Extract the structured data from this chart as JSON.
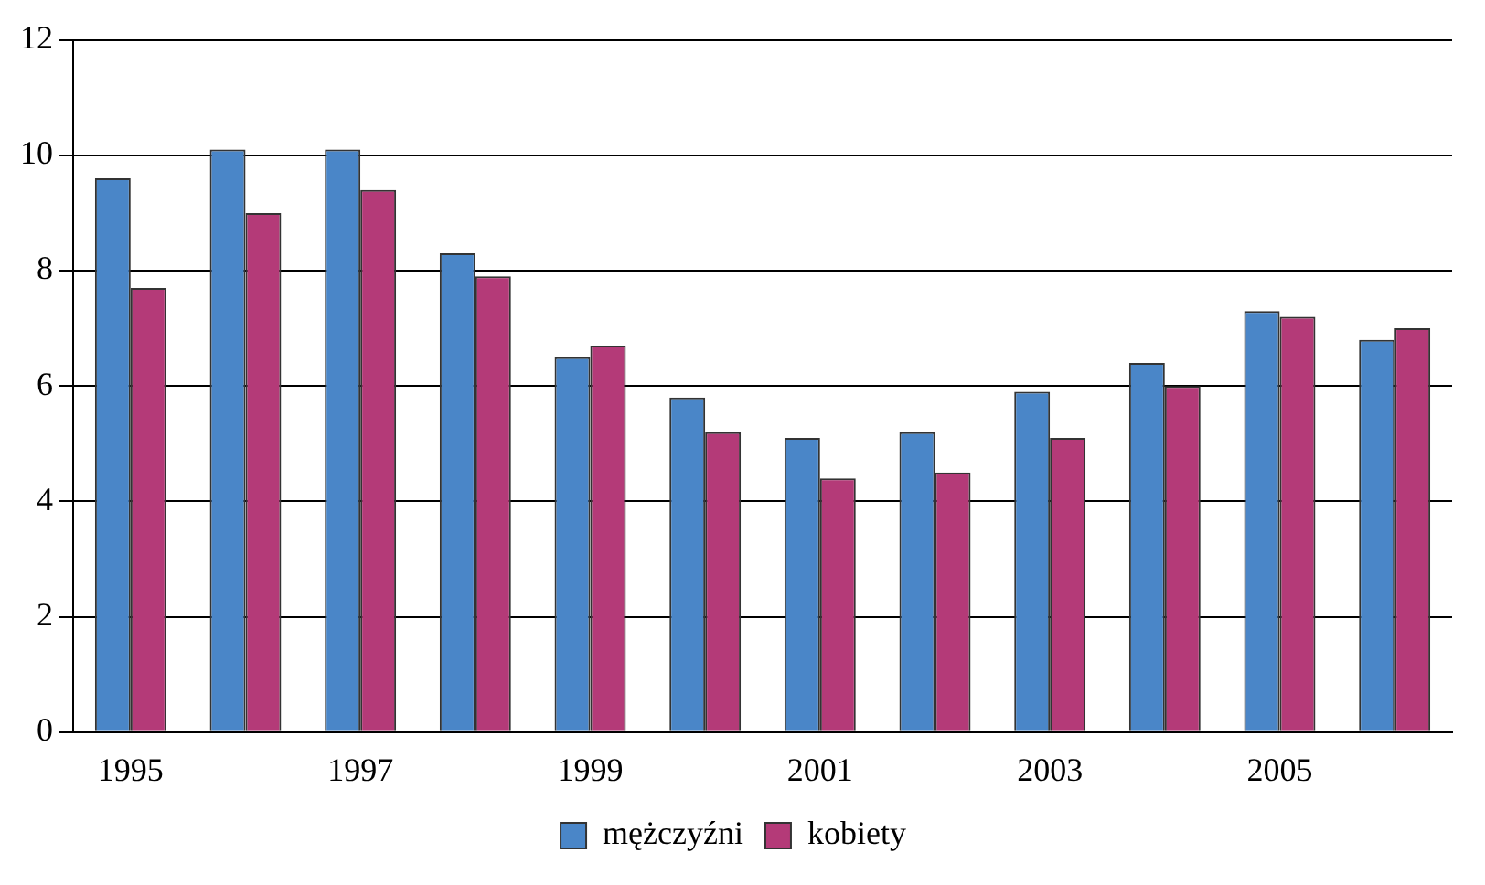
{
  "chart_data": {
    "type": "bar",
    "categories": [
      "1995",
      null,
      "1997",
      null,
      "1999",
      null,
      "2001",
      null,
      "2003",
      null,
      "2005",
      null
    ],
    "series": [
      {
        "name": "mężczyźni",
        "color": "#4a86c8",
        "values": [
          9.6,
          10.1,
          10.1,
          8.3,
          6.5,
          5.8,
          5.1,
          5.2,
          5.9,
          6.4,
          7.3,
          6.8
        ]
      },
      {
        "name": "kobiety",
        "color": "#b43a78",
        "values": [
          7.7,
          9.0,
          9.4,
          7.9,
          6.7,
          5.2,
          4.4,
          4.5,
          5.1,
          6.0,
          7.2,
          7.0
        ]
      }
    ],
    "ylim": [
      0,
      12
    ],
    "yticks": [
      0,
      2,
      4,
      6,
      8,
      10,
      12
    ],
    "grid": "y",
    "legend": "bottom"
  }
}
